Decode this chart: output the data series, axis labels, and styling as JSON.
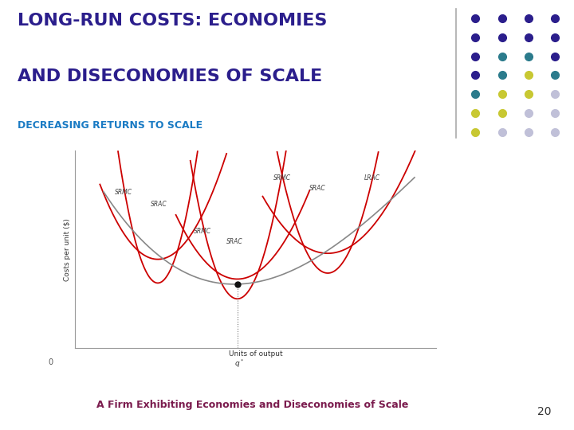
{
  "title_line1": "LONG-RUN COSTS: ECONOMIES",
  "title_line2": "AND DISECONOMIES OF SCALE",
  "subtitle": "DECREASING RETURNS TO SCALE",
  "title_color": "#2B1E8C",
  "subtitle_color": "#1A7BC4",
  "caption": "A Firm Exhibiting Economies and Diseconomies of Scale",
  "caption_text_color": "#7B1C4E",
  "caption_bg": "#D4C99A",
  "page_num": "20",
  "curve_color": "#CC0000",
  "lrac_color": "#888888",
  "ylabel": "Costs per unit ($)",
  "xlabel": "Units of output",
  "bg_color": "#FFFFFF",
  "dot_colors": [
    [
      "#2B1E8C",
      "#2B1E8C",
      "#2B1E8C",
      "#2B1E8C"
    ],
    [
      "#2B1E8C",
      "#2B1E8C",
      "#2B1E8C",
      "#2B1E8C"
    ],
    [
      "#2B1E8C",
      "#2B7B8C",
      "#2B7B8C",
      "#2B1E8C"
    ],
    [
      "#2B1E8C",
      "#2B7B8C",
      "#C8C832",
      "#2B7B8C"
    ],
    [
      "#2B7B8C",
      "#C8C832",
      "#C8C832",
      "#C0C0D8"
    ],
    [
      "#C8C832",
      "#C8C832",
      "#C0C0D8",
      "#C0C0D8"
    ],
    [
      "#C8C832",
      "#C0C0D8",
      "#C0C0D8",
      "#C0C0D8"
    ]
  ]
}
